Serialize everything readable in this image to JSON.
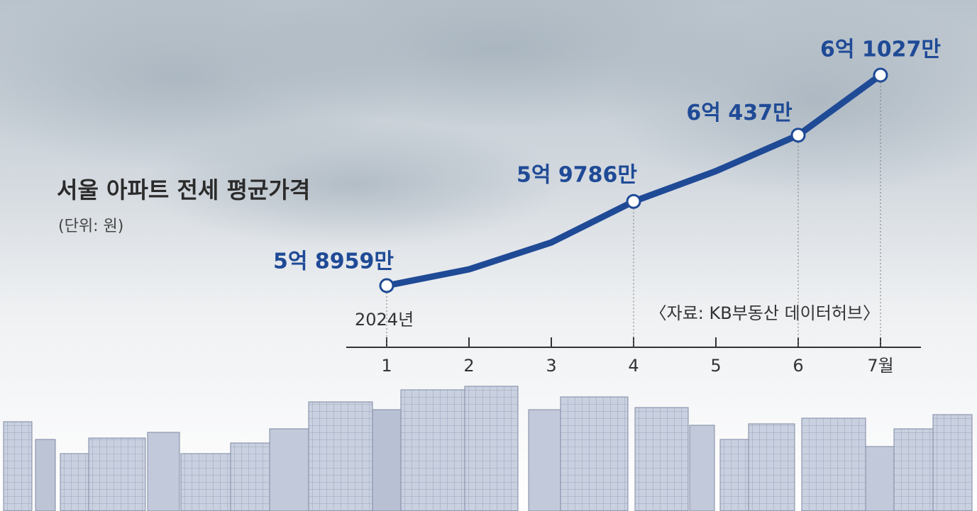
{
  "chart_data": {
    "type": "line",
    "title": "서울 아파트 전세 평균가격",
    "subtitle": "(단위: 원)",
    "source": "〈자료: KB부동산 데이터허브〉",
    "year_label": "2024년",
    "categories": [
      "1",
      "2",
      "3",
      "4",
      "5",
      "6",
      "7월"
    ],
    "values": [
      58959,
      59119,
      59383,
      59786,
      60084,
      60437,
      61027
    ],
    "value_labels": [
      "5억 8959만",
      null,
      null,
      "5억 9786만",
      null,
      "6억 437만",
      "6억 1027만"
    ],
    "color": "#1f4a96"
  }
}
